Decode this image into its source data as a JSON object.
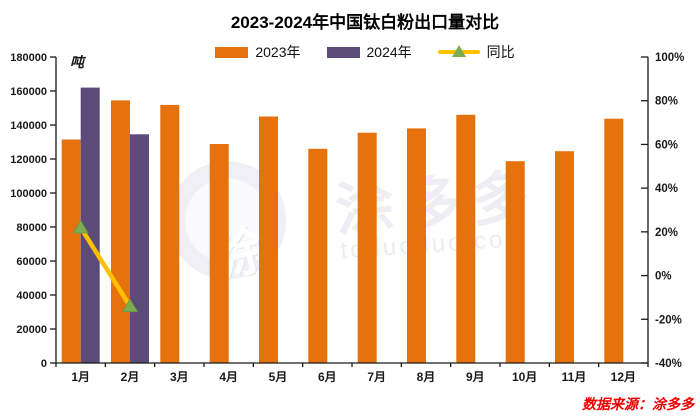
{
  "page": {
    "title": "2023-2024年中国钛白粉出口量对比",
    "source_note": "数据来源：涂多多",
    "watermark": {
      "logo_glyph": "涂",
      "logo_text": "涂多多",
      "url_text": "toduoduo.com"
    }
  },
  "colors": {
    "bar_2023": "#E5720D",
    "bar_2024": "#5C4A78",
    "yoy_line": "#FFC000",
    "yoy_marker": "#7EAD4F",
    "yoy_marker_edge": "#699540",
    "axis": "#1a1a1a",
    "source_red": "#f00000"
  },
  "chart_data": {
    "type": "bar",
    "title": "2023-2024年中国钛白粉出口量对比",
    "categories": [
      "1月",
      "2月",
      "3月",
      "4月",
      "5月",
      "6月",
      "7月",
      "8月",
      "9月",
      "10月",
      "11月",
      "12月"
    ],
    "series": [
      {
        "name": "2023年",
        "type": "bar",
        "color": "#E5720D",
        "values": [
          131500,
          154500,
          151800,
          128800,
          145000,
          126000,
          135500,
          138000,
          146000,
          118700,
          124600,
          143700
        ]
      },
      {
        "name": "2024年",
        "type": "bar",
        "color": "#5C4A78",
        "values": [
          162000,
          134500
        ]
      },
      {
        "name": "同比",
        "type": "line",
        "axis": "right",
        "color": "#FFC000",
        "marker": "triangle",
        "marker_color": "#7EAD4F",
        "values_pct": [
          22,
          -14
        ]
      }
    ],
    "left_axis": {
      "unit": "吨",
      "min": 0,
      "max": 180000,
      "step": 20000,
      "labels": [
        "0",
        "20000",
        "40000",
        "60000",
        "80000",
        "100000",
        "120000",
        "140000",
        "160000",
        "180000"
      ]
    },
    "right_axis": {
      "min": -40,
      "max": 100,
      "step": 20,
      "labels": [
        "-40%",
        "-20%",
        "0%",
        "20%",
        "40%",
        "60%",
        "80%",
        "100%"
      ]
    },
    "grid": false,
    "legend_position": "top-center"
  }
}
